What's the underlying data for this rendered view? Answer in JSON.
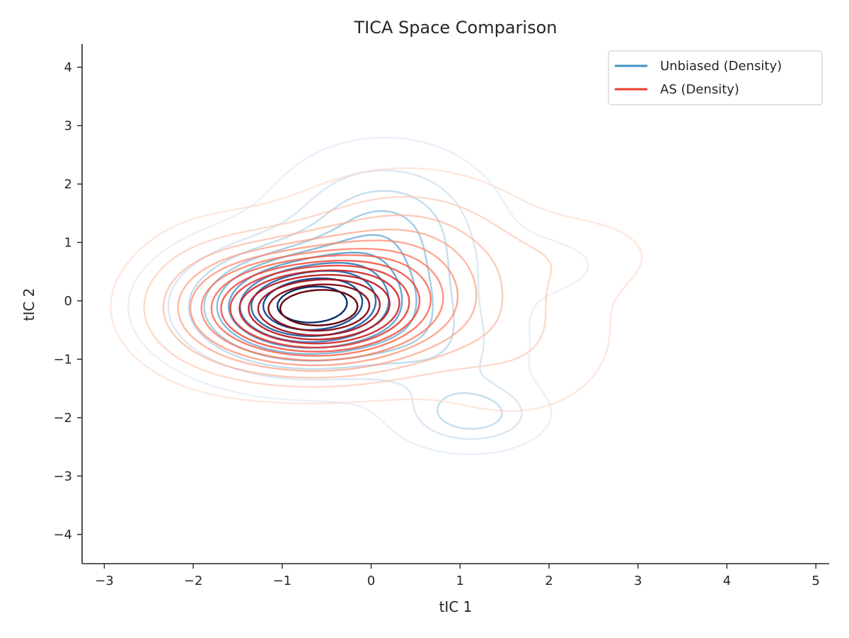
{
  "chart_data": {
    "type": "contour",
    "title": "TICA Space Comparison",
    "xlabel": "tIC 1",
    "ylabel": "tIC 2",
    "xlim": [
      -3.25,
      5.15
    ],
    "ylim": [
      -4.5,
      4.4
    ],
    "xticks": [
      -3,
      -2,
      -1,
      0,
      1,
      2,
      3,
      4,
      5
    ],
    "yticks": [
      -4,
      -3,
      -2,
      -1,
      0,
      1,
      2,
      3,
      4
    ],
    "xtick_labels": [
      "−3",
      "−2",
      "−1",
      "0",
      "1",
      "2",
      "3",
      "4",
      "5"
    ],
    "ytick_labels": [
      "−4",
      "−3",
      "−2",
      "−1",
      "0",
      "1",
      "2",
      "3",
      "4"
    ],
    "grid": false,
    "legend_position": "top-right",
    "legend": [
      {
        "label": "Unbiased (Density)",
        "color": "#4292c6"
      },
      {
        "label": "AS (Density)",
        "color": "#ef3b2c"
      }
    ],
    "series": [
      {
        "name": "Unbiased (Density)",
        "colormap": "Blues",
        "levels": 10,
        "peak": [
          -0.72,
          -0.1
        ],
        "secondary_peak": [
          1.15,
          -1.95
        ],
        "components": [
          {
            "center": [
              -0.72,
              -0.1
            ],
            "sigma": [
              0.78,
              0.62
            ],
            "weight": 1.0
          },
          {
            "center": [
              0.15,
              1.2
            ],
            "sigma": [
              0.65,
              0.75
            ],
            "weight": 0.35
          },
          {
            "center": [
              1.15,
              -1.95
            ],
            "sigma": [
              0.42,
              0.32
            ],
            "weight": 0.28
          },
          {
            "center": [
              0.8,
              -0.9
            ],
            "sigma": [
              0.55,
              0.7
            ],
            "weight": 0.16
          },
          {
            "center": [
              1.9,
              0.6
            ],
            "sigma": [
              0.65,
              0.45
            ],
            "weight": 0.05
          }
        ]
      },
      {
        "name": "AS (Density)",
        "colormap": "Reds",
        "levels": 14,
        "peak": [
          -0.62,
          -0.15
        ],
        "components": [
          {
            "center": [
              -0.62,
              -0.15
            ],
            "sigma": [
              0.85,
              0.62
            ],
            "weight": 1.0
          },
          {
            "center": [
              0.4,
              0.85
            ],
            "sigma": [
              0.8,
              0.75
            ],
            "weight": 0.22
          },
          {
            "center": [
              1.6,
              -0.6
            ],
            "sigma": [
              0.75,
              0.9
            ],
            "weight": 0.1
          },
          {
            "center": [
              2.4,
              0.8
            ],
            "sigma": [
              0.6,
              0.45
            ],
            "weight": 0.055
          },
          {
            "center": [
              -1.8,
              0.1
            ],
            "sigma": [
              0.6,
              0.9
            ],
            "weight": 0.07
          }
        ]
      }
    ]
  }
}
